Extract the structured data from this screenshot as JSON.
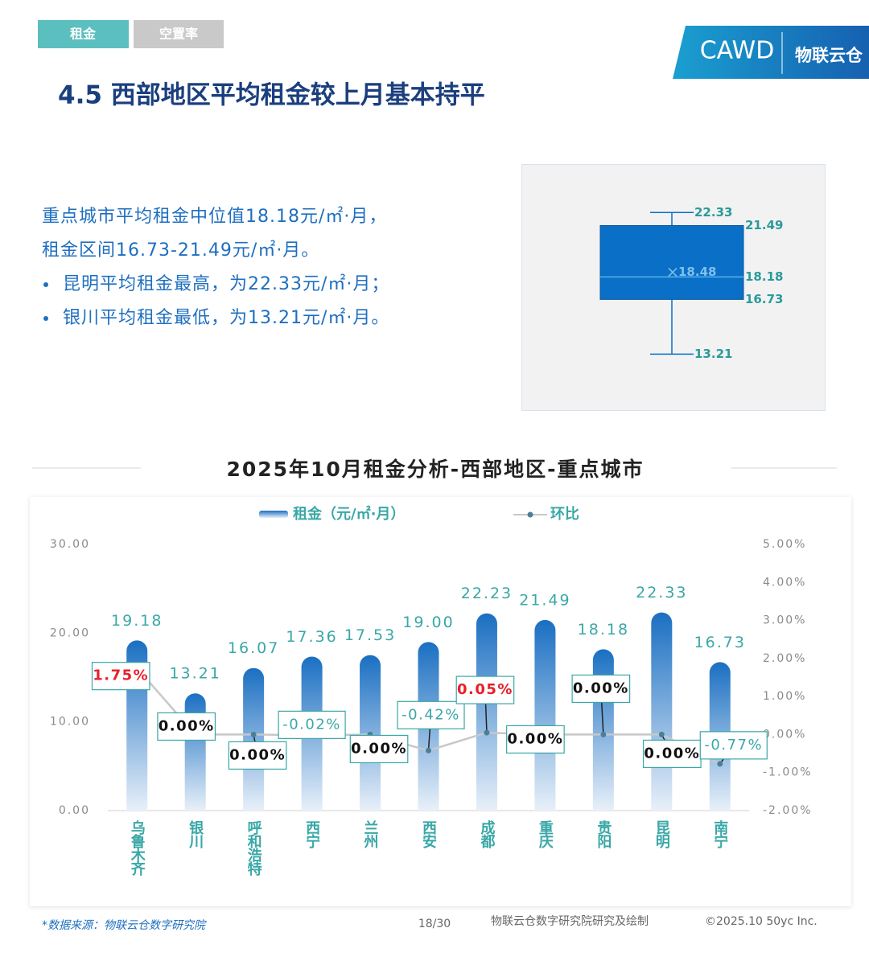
{
  "tabs": [
    "租金",
    "空置率"
  ],
  "logo": {
    "brand": "CAWD",
    "name": "物联云仓"
  },
  "heading": "4.5 西部地区平均租金较上月基本持平",
  "summary": [
    "重点城市平均租金中位值18.18元/㎡·月，",
    "租金区间16.73-21.49元/㎡·月。",
    "昆明平均租金最高，为22.33元/㎡·月；",
    "银川平均租金最低，为13.21元/㎡·月。"
  ],
  "chart_data": [
    {
      "type": "box",
      "min": 13.21,
      "q1": 16.73,
      "median": 18.18,
      "q3": 21.49,
      "max": 22.33,
      "mean": 18.48,
      "color": "#0a6fc6",
      "ylim": [
        9.6,
        25.4
      ]
    },
    {
      "type": "bar",
      "title": "2025年10月租金分析-西部地区-重点城市",
      "categories": [
        "乌鲁木齐",
        "银川",
        "呼和浩特",
        "西宁",
        "兰州",
        "西安",
        "成都",
        "重庆",
        "贵阳",
        "昆明",
        "南宁"
      ],
      "series": [
        {
          "name": "租金（元/㎡·月）",
          "color": "#1a6fc2",
          "values": [
            19.18,
            13.21,
            16.07,
            17.36,
            17.53,
            19.0,
            22.23,
            21.49,
            18.18,
            22.33,
            16.73
          ],
          "value_labels": [
            "19.18",
            "13.21",
            "16.07",
            "17.36",
            "17.53",
            "19.00",
            "22.23",
            "21.49",
            "18.18",
            "22.33",
            "16.73"
          ]
        },
        {
          "name": "环比",
          "color": "#c8c8c8",
          "axis": "y2",
          "values": [
            1.75,
            0,
            0,
            -0.02,
            0,
            -0.42,
            0.05,
            0,
            0,
            0,
            -0.77
          ],
          "value_labels": [
            "1.75%",
            "0.00%",
            "0.00%",
            "-0.02%",
            "0.00%",
            "-0.42%",
            "0.05%",
            "0.00%",
            "0.00%",
            "0.00%",
            "-0.77%"
          ]
        }
      ],
      "ylim": [
        0,
        30
      ],
      "yticks": [
        {
          "value": 0,
          "label": "0.00"
        },
        {
          "value": 10,
          "label": "10.00"
        },
        {
          "value": 20,
          "label": "20.00"
        },
        {
          "value": 30,
          "label": "30.00"
        }
      ],
      "y2lim": [
        -2,
        5
      ],
      "y2ticks": [
        {
          "value": -2,
          "label": "-2.00%"
        },
        {
          "value": -1,
          "label": "-1.00%"
        },
        {
          "value": 0,
          "label": "0.00%"
        },
        {
          "value": 1,
          "label": "1.00%"
        },
        {
          "value": 2,
          "label": "2.00%"
        },
        {
          "value": 3,
          "label": "3.00%"
        },
        {
          "value": 4,
          "label": "4.00%"
        },
        {
          "value": 5,
          "label": "5.00%"
        }
      ],
      "grid": false,
      "legend": "top"
    }
  ],
  "footer": {
    "source": "*数据来源：物联云仓数字研究院",
    "page": "18/30",
    "credit": "物联云仓数字研究院研究及绘制",
    "copyright": "©2025.10 50yc Inc."
  }
}
